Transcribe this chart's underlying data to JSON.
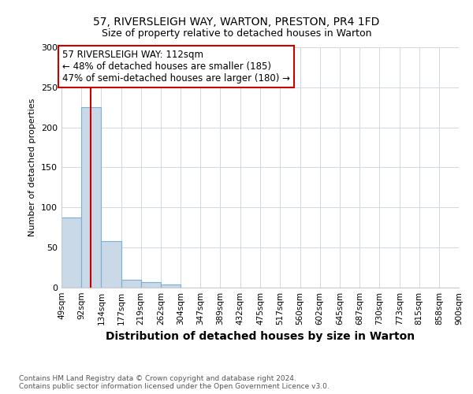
{
  "title1": "57, RIVERSLEIGH WAY, WARTON, PRESTON, PR4 1FD",
  "title2": "Size of property relative to detached houses in Warton",
  "xlabel": "Distribution of detached houses by size in Warton",
  "ylabel": "Number of detached properties",
  "footer": "Contains HM Land Registry data © Crown copyright and database right 2024.\nContains public sector information licensed under the Open Government Licence v3.0.",
  "bin_labels": [
    "49sqm",
    "92sqm",
    "134sqm",
    "177sqm",
    "219sqm",
    "262sqm",
    "304sqm",
    "347sqm",
    "389sqm",
    "432sqm",
    "475sqm",
    "517sqm",
    "560sqm",
    "602sqm",
    "645sqm",
    "687sqm",
    "730sqm",
    "773sqm",
    "815sqm",
    "858sqm",
    "900sqm"
  ],
  "bar_values": [
    88,
    225,
    58,
    10,
    7,
    4,
    0,
    0,
    0,
    0,
    0,
    0,
    0,
    0,
    0,
    0,
    0,
    0,
    0,
    0
  ],
  "bar_color": "#c9d9e8",
  "bar_edge_color": "#7bafd4",
  "property_size": 112,
  "property_label": "57 RIVERSLEIGH WAY: 112sqm",
  "annotation_line1": "← 48% of detached houses are smaller (185)",
  "annotation_line2": "47% of semi-detached houses are larger (180) →",
  "red_line_color": "#cc0000",
  "annotation_box_color": "#ffffff",
  "annotation_box_edge": "#cc0000",
  "ylim": [
    0,
    300
  ],
  "yticks": [
    0,
    50,
    100,
    150,
    200,
    250,
    300
  ],
  "bin_edges": [
    49,
    92,
    134,
    177,
    219,
    262,
    304,
    347,
    389,
    432,
    475,
    517,
    560,
    602,
    645,
    687,
    730,
    773,
    815,
    858,
    900
  ],
  "title_fontsize": 10,
  "ylabel_fontsize": 8,
  "xlabel_fontsize": 10,
  "annotation_fontsize": 8.5,
  "ytick_fontsize": 8,
  "xtick_fontsize": 7.5
}
